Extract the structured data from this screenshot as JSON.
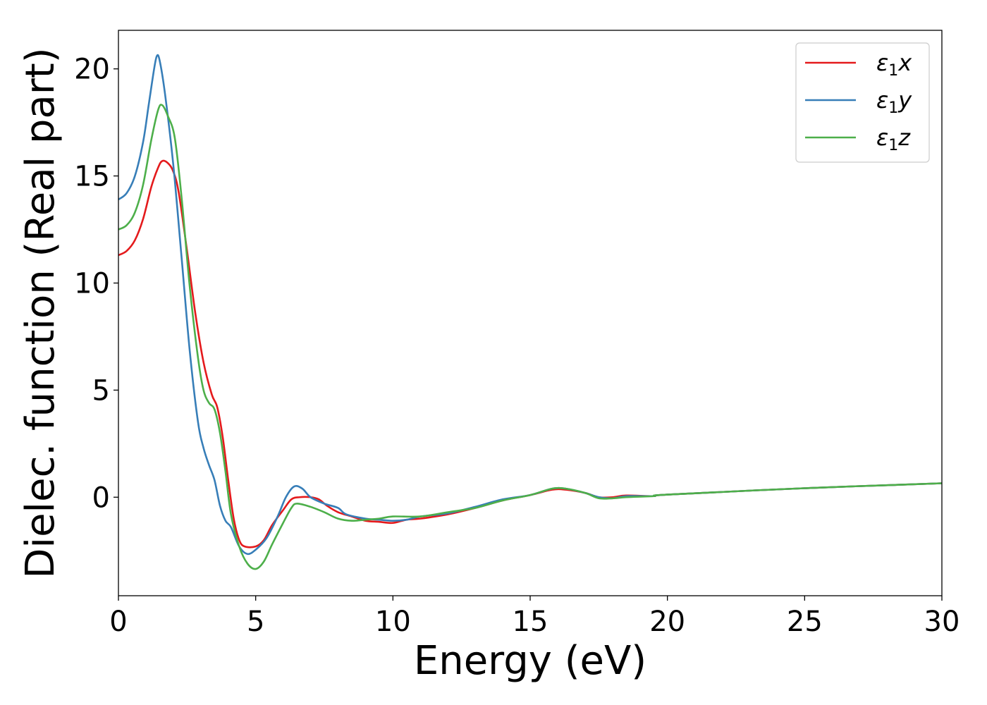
{
  "chart_data": {
    "type": "line",
    "xlabel": "Energy (eV)",
    "ylabel": "Dielec. function (Real part)",
    "xlim": [
      0,
      30
    ],
    "ylim": [
      -4.6,
      21.8
    ],
    "xticks": [
      0,
      5,
      10,
      15,
      20,
      25,
      30
    ],
    "yticks": [
      0,
      5,
      10,
      15,
      20
    ],
    "grid": false,
    "legend_position": "top-right",
    "series": [
      {
        "name": "ε1x",
        "legend": {
          "base": "ε",
          "sub": "1",
          "suffix": "x"
        },
        "color": "#e41a1c",
        "points": [
          [
            0,
            11.3
          ],
          [
            0.3,
            11.5
          ],
          [
            0.6,
            12.0
          ],
          [
            0.9,
            13.0
          ],
          [
            1.2,
            14.5
          ],
          [
            1.45,
            15.4
          ],
          [
            1.6,
            15.7
          ],
          [
            1.8,
            15.6
          ],
          [
            2.0,
            15.2
          ],
          [
            2.2,
            14.2
          ],
          [
            2.5,
            11.5
          ],
          [
            2.8,
            8.6
          ],
          [
            3.1,
            6.3
          ],
          [
            3.4,
            4.8
          ],
          [
            3.6,
            4.2
          ],
          [
            3.8,
            2.8
          ],
          [
            4.0,
            0.8
          ],
          [
            4.2,
            -1.0
          ],
          [
            4.4,
            -2.0
          ],
          [
            4.6,
            -2.3
          ],
          [
            5.0,
            -2.3
          ],
          [
            5.3,
            -2.0
          ],
          [
            5.6,
            -1.3
          ],
          [
            6.0,
            -0.6
          ],
          [
            6.3,
            -0.1
          ],
          [
            6.6,
            0.0
          ],
          [
            7.0,
            0.0
          ],
          [
            7.3,
            -0.1
          ],
          [
            7.6,
            -0.4
          ],
          [
            8.0,
            -0.7
          ],
          [
            8.5,
            -0.9
          ],
          [
            9.0,
            -1.1
          ],
          [
            9.5,
            -1.15
          ],
          [
            10.0,
            -1.2
          ],
          [
            10.5,
            -1.05
          ],
          [
            11.0,
            -1.0
          ],
          [
            12.0,
            -0.8
          ],
          [
            13.0,
            -0.5
          ],
          [
            14.0,
            -0.15
          ],
          [
            15.0,
            0.1
          ],
          [
            15.8,
            0.35
          ],
          [
            16.3,
            0.35
          ],
          [
            17.0,
            0.2
          ],
          [
            17.5,
            0.0
          ],
          [
            18.0,
            0.0
          ],
          [
            18.5,
            0.08
          ],
          [
            19.5,
            0.05
          ],
          [
            20,
            0.12
          ],
          [
            25,
            0.42
          ],
          [
            30,
            0.65
          ]
        ]
      },
      {
        "name": "ε1y",
        "legend": {
          "base": "ε",
          "sub": "1",
          "suffix": "y"
        },
        "color": "#377eb8",
        "points": [
          [
            0,
            13.9
          ],
          [
            0.3,
            14.2
          ],
          [
            0.6,
            15.0
          ],
          [
            0.9,
            16.6
          ],
          [
            1.1,
            18.3
          ],
          [
            1.3,
            20.0
          ],
          [
            1.4,
            20.6
          ],
          [
            1.5,
            20.4
          ],
          [
            1.7,
            18.8
          ],
          [
            2.0,
            15.5
          ],
          [
            2.3,
            11.2
          ],
          [
            2.6,
            6.8
          ],
          [
            2.9,
            3.5
          ],
          [
            3.1,
            2.3
          ],
          [
            3.3,
            1.5
          ],
          [
            3.5,
            0.8
          ],
          [
            3.7,
            -0.4
          ],
          [
            3.9,
            -1.1
          ],
          [
            4.1,
            -1.4
          ],
          [
            4.4,
            -2.3
          ],
          [
            4.7,
            -2.65
          ],
          [
            5.0,
            -2.45
          ],
          [
            5.4,
            -1.9
          ],
          [
            5.8,
            -0.9
          ],
          [
            6.1,
            0.0
          ],
          [
            6.4,
            0.5
          ],
          [
            6.7,
            0.4
          ],
          [
            7.0,
            0.0
          ],
          [
            7.5,
            -0.3
          ],
          [
            8.0,
            -0.5
          ],
          [
            8.3,
            -0.8
          ],
          [
            9.0,
            -1.0
          ],
          [
            9.5,
            -1.05
          ],
          [
            10.0,
            -1.1
          ],
          [
            10.5,
            -1.05
          ],
          [
            11.0,
            -0.9
          ],
          [
            12.0,
            -0.75
          ],
          [
            13.0,
            -0.45
          ],
          [
            14.0,
            -0.1
          ],
          [
            15.0,
            0.1
          ],
          [
            15.8,
            0.4
          ],
          [
            16.3,
            0.4
          ],
          [
            17.0,
            0.2
          ],
          [
            17.5,
            0.0
          ],
          [
            18.0,
            -0.05
          ],
          [
            18.5,
            0.05
          ],
          [
            19.5,
            0.05
          ],
          [
            20,
            0.12
          ],
          [
            25,
            0.42
          ],
          [
            30,
            0.65
          ]
        ]
      },
      {
        "name": "ε1z",
        "legend": {
          "base": "ε",
          "sub": "1",
          "suffix": "z"
        },
        "color": "#4daf4a",
        "points": [
          [
            0,
            12.5
          ],
          [
            0.3,
            12.7
          ],
          [
            0.6,
            13.3
          ],
          [
            0.9,
            14.6
          ],
          [
            1.2,
            16.7
          ],
          [
            1.45,
            18.1
          ],
          [
            1.6,
            18.3
          ],
          [
            1.8,
            17.8
          ],
          [
            2.05,
            16.8
          ],
          [
            2.3,
            14.0
          ],
          [
            2.6,
            9.8
          ],
          [
            2.9,
            6.5
          ],
          [
            3.1,
            5.0
          ],
          [
            3.3,
            4.4
          ],
          [
            3.5,
            4.1
          ],
          [
            3.7,
            3.0
          ],
          [
            3.9,
            1.2
          ],
          [
            4.1,
            -0.8
          ],
          [
            4.4,
            -2.3
          ],
          [
            4.7,
            -3.1
          ],
          [
            5.0,
            -3.35
          ],
          [
            5.3,
            -3.0
          ],
          [
            5.6,
            -2.2
          ],
          [
            6.0,
            -1.2
          ],
          [
            6.3,
            -0.5
          ],
          [
            6.5,
            -0.3
          ],
          [
            7.0,
            -0.45
          ],
          [
            7.5,
            -0.7
          ],
          [
            8.0,
            -1.0
          ],
          [
            8.5,
            -1.1
          ],
          [
            9.0,
            -1.05
          ],
          [
            9.5,
            -1.0
          ],
          [
            10.0,
            -0.9
          ],
          [
            11.0,
            -0.9
          ],
          [
            12.0,
            -0.7
          ],
          [
            13.0,
            -0.5
          ],
          [
            14.0,
            -0.15
          ],
          [
            15.0,
            0.1
          ],
          [
            15.8,
            0.4
          ],
          [
            16.3,
            0.4
          ],
          [
            17.0,
            0.2
          ],
          [
            17.5,
            -0.05
          ],
          [
            18.0,
            -0.05
          ],
          [
            18.5,
            0.0
          ],
          [
            19.5,
            0.05
          ],
          [
            20,
            0.12
          ],
          [
            25,
            0.42
          ],
          [
            30,
            0.65
          ]
        ]
      }
    ]
  }
}
